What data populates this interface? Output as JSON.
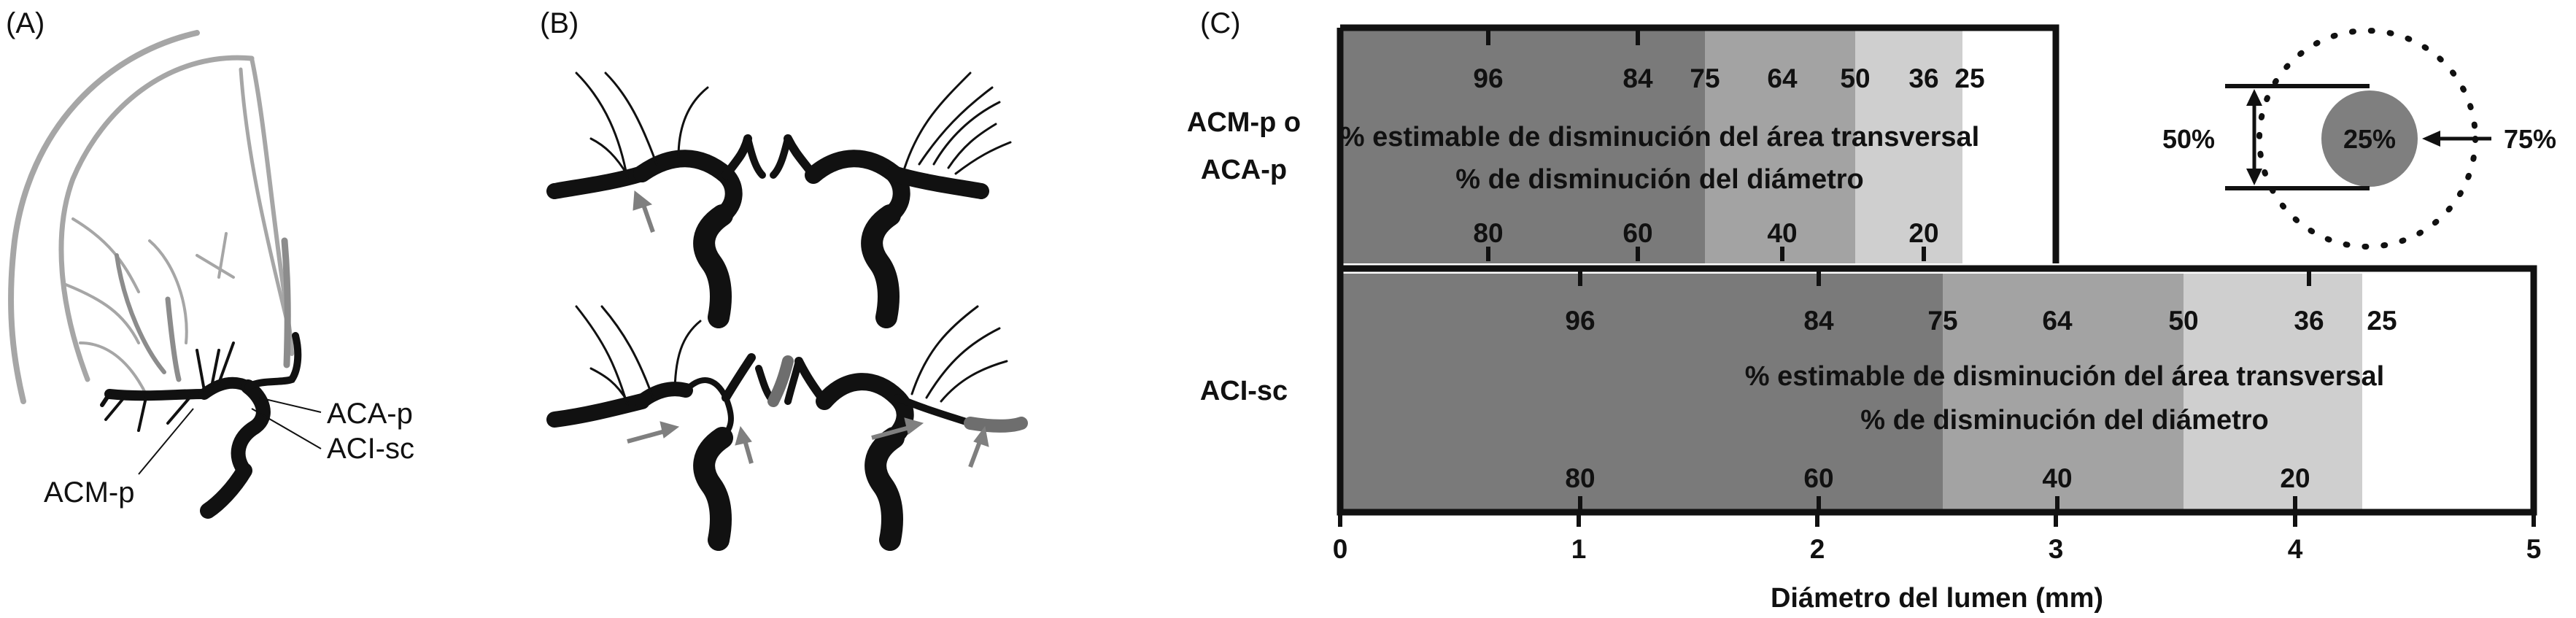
{
  "panels": {
    "a": {
      "label": "(A)",
      "vessels": [
        "ACA-p",
        "ACI-sc",
        "ACM-p"
      ]
    },
    "b": {
      "label": "(B)"
    },
    "c": {
      "label": "(C)",
      "row_top_label_line1": "ACM-p o",
      "row_top_label_line2": "ACA-p",
      "row_bottom_label": "ACI-sc",
      "area_label": "% estimable de disminución del área transversal",
      "diameter_label": "% de disminución del diámetro",
      "top_area_ticks": [
        "96",
        "84",
        "75",
        "64",
        "50",
        "36",
        "25"
      ],
      "top_diam_ticks": [
        "80",
        "60",
        "40",
        "20"
      ],
      "bottom_area_ticks": [
        "96",
        "84",
        "75",
        "64",
        "50",
        "36",
        "25"
      ],
      "bottom_diam_ticks": [
        "80",
        "60",
        "40",
        "20"
      ],
      "x_ticks": [
        "0",
        "1",
        "2",
        "3",
        "4",
        "5"
      ],
      "x_axis_label": "Diámetro del lumen (mm)",
      "inset": {
        "left_label": "50%",
        "center_label": "25%",
        "right_label": "75%"
      },
      "shade_colors": [
        "#7a7a7a",
        "#a3a3a3",
        "#cfcfcf",
        "#ffffff"
      ]
    }
  }
}
